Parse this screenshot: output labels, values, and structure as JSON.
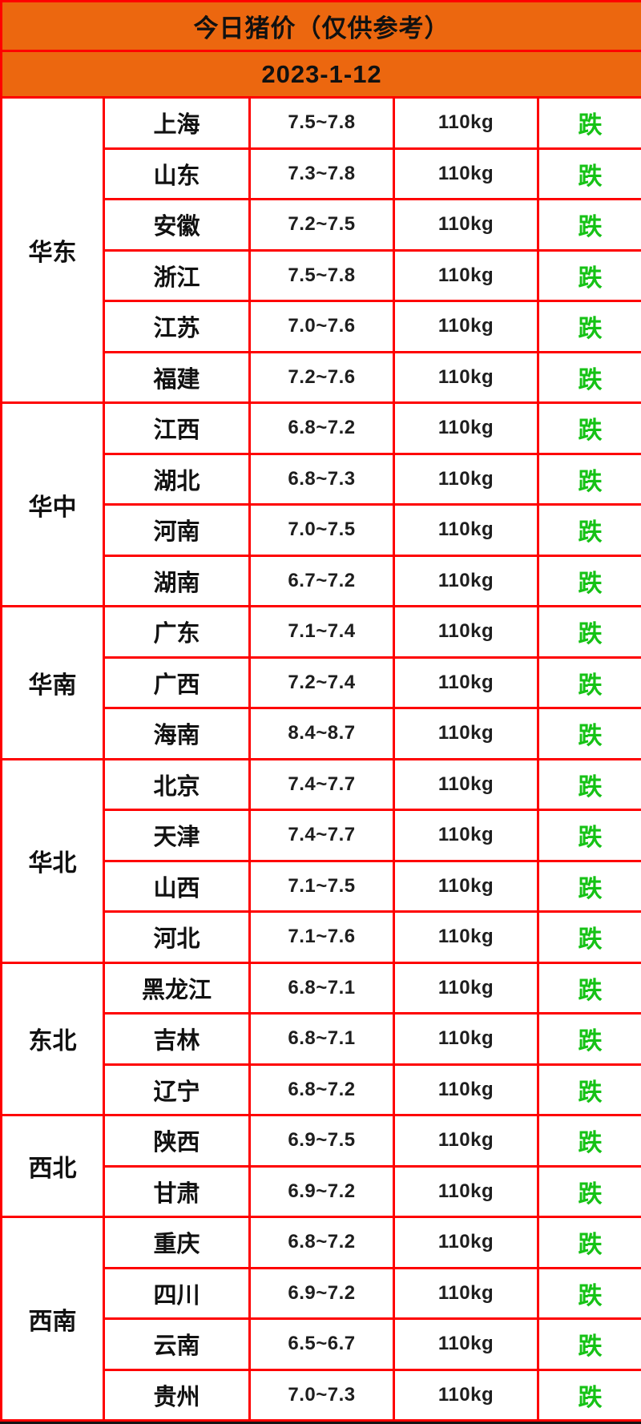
{
  "header": {
    "title": "今日猪价（仅供参考）",
    "date": "2023-1-12"
  },
  "colors": {
    "header_orange": "#ec670f",
    "border_red": "#fe0000",
    "fall_green": "#15c215",
    "text_black": "#1e1e1e"
  },
  "regions": [
    {
      "name": "华东",
      "rows": [
        {
          "province": "上海",
          "price": "7.5~7.8",
          "weight": "110kg",
          "status": "跌"
        },
        {
          "province": "山东",
          "price": "7.3~7.8",
          "weight": "110kg",
          "status": "跌"
        },
        {
          "province": "安徽",
          "price": "7.2~7.5",
          "weight": "110kg",
          "status": "跌"
        },
        {
          "province": "浙江",
          "price": "7.5~7.8",
          "weight": "110kg",
          "status": "跌"
        },
        {
          "province": "江苏",
          "price": "7.0~7.6",
          "weight": "110kg",
          "status": "跌"
        },
        {
          "province": "福建",
          "price": "7.2~7.6",
          "weight": "110kg",
          "status": "跌"
        }
      ]
    },
    {
      "name": "华中",
      "rows": [
        {
          "province": "江西",
          "price": "6.8~7.2",
          "weight": "110kg",
          "status": "跌"
        },
        {
          "province": "湖北",
          "price": "6.8~7.3",
          "weight": "110kg",
          "status": "跌"
        },
        {
          "province": "河南",
          "price": "7.0~7.5",
          "weight": "110kg",
          "status": "跌"
        },
        {
          "province": "湖南",
          "price": "6.7~7.2",
          "weight": "110kg",
          "status": "跌"
        }
      ]
    },
    {
      "name": "华南",
      "rows": [
        {
          "province": "广东",
          "price": "7.1~7.4",
          "weight": "110kg",
          "status": "跌"
        },
        {
          "province": "广西",
          "price": "7.2~7.4",
          "weight": "110kg",
          "status": "跌"
        },
        {
          "province": "海南",
          "price": "8.4~8.7",
          "weight": "110kg",
          "status": "跌"
        }
      ]
    },
    {
      "name": "华北",
      "rows": [
        {
          "province": "北京",
          "price": "7.4~7.7",
          "weight": "110kg",
          "status": "跌"
        },
        {
          "province": "天津",
          "price": "7.4~7.7",
          "weight": "110kg",
          "status": "跌"
        },
        {
          "province": "山西",
          "price": "7.1~7.5",
          "weight": "110kg",
          "status": "跌"
        },
        {
          "province": "河北",
          "price": "7.1~7.6",
          "weight": "110kg",
          "status": "跌"
        }
      ]
    },
    {
      "name": "东北",
      "rows": [
        {
          "province": "黑龙江",
          "price": "6.8~7.1",
          "weight": "110kg",
          "status": "跌"
        },
        {
          "province": "吉林",
          "price": "6.8~7.1",
          "weight": "110kg",
          "status": "跌"
        },
        {
          "province": "辽宁",
          "price": "6.8~7.2",
          "weight": "110kg",
          "status": "跌"
        }
      ]
    },
    {
      "name": "西北",
      "rows": [
        {
          "province": "陕西",
          "price": "6.9~7.5",
          "weight": "110kg",
          "status": "跌"
        },
        {
          "province": "甘肃",
          "price": "6.9~7.2",
          "weight": "110kg",
          "status": "跌"
        }
      ]
    },
    {
      "name": "西南",
      "rows": [
        {
          "province": "重庆",
          "price": "6.8~7.2",
          "weight": "110kg",
          "status": "跌"
        },
        {
          "province": "四川",
          "price": "6.9~7.2",
          "weight": "110kg",
          "status": "跌"
        },
        {
          "province": "云南",
          "price": "6.5~6.7",
          "weight": "110kg",
          "status": "跌"
        },
        {
          "province": "贵州",
          "price": "7.0~7.3",
          "weight": "110kg",
          "status": "跌"
        }
      ]
    }
  ]
}
